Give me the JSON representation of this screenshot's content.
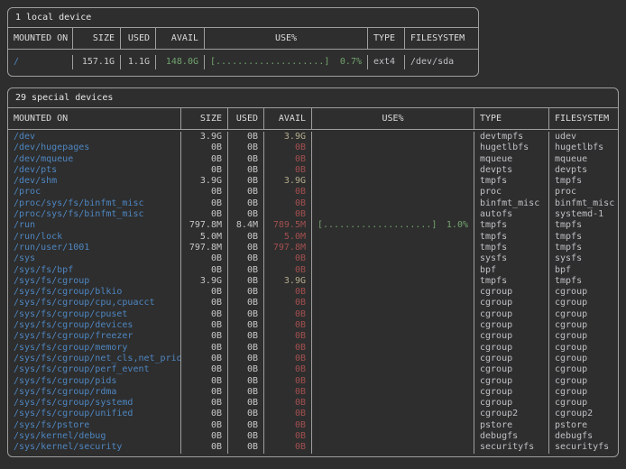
{
  "colors": {
    "background": "#2e2e2e",
    "border": "#9e9e9e",
    "title_text": "#e6e6e6",
    "header_text": "#dcdcdc",
    "mount_path_blue": "#4e86c1",
    "value_default": "#c8c8c8",
    "avail_low_red": "#a34f4f",
    "avail_mid_yellow": "#b3ab8c",
    "usage_green": "#72a36e",
    "type_text": "#c0c0c6"
  },
  "tables": [
    {
      "title": "1 local device",
      "columns": [
        "MOUNTED ON",
        "SIZE",
        "USED",
        "AVAIL",
        "USE%",
        "TYPE",
        "FILESYSTEM"
      ],
      "rows": [
        {
          "mounted_on": "/",
          "size": "157.1G",
          "used": "1.1G",
          "avail": "148.0G",
          "avail_color": "green",
          "use_bar": "[....................]",
          "use_pct": "0.7%",
          "use_color": "green",
          "type": "ext4",
          "filesystem": "/dev/sda"
        }
      ]
    },
    {
      "title": "29 special devices",
      "columns": [
        "MOUNTED ON",
        "SIZE",
        "USED",
        "AVAIL",
        "USE%",
        "TYPE",
        "FILESYSTEM"
      ],
      "rows": [
        {
          "mounted_on": "/dev",
          "size": "3.9G",
          "used": "0B",
          "avail": "3.9G",
          "avail_color": "yellow",
          "use_bar": "",
          "use_pct": "",
          "use_color": "green",
          "type": "devtmpfs",
          "filesystem": "udev"
        },
        {
          "mounted_on": "/dev/hugepages",
          "size": "0B",
          "used": "0B",
          "avail": "0B",
          "avail_color": "red",
          "use_bar": "",
          "use_pct": "",
          "use_color": "green",
          "type": "hugetlbfs",
          "filesystem": "hugetlbfs"
        },
        {
          "mounted_on": "/dev/mqueue",
          "size": "0B",
          "used": "0B",
          "avail": "0B",
          "avail_color": "red",
          "use_bar": "",
          "use_pct": "",
          "use_color": "green",
          "type": "mqueue",
          "filesystem": "mqueue"
        },
        {
          "mounted_on": "/dev/pts",
          "size": "0B",
          "used": "0B",
          "avail": "0B",
          "avail_color": "red",
          "use_bar": "",
          "use_pct": "",
          "use_color": "green",
          "type": "devpts",
          "filesystem": "devpts"
        },
        {
          "mounted_on": "/dev/shm",
          "size": "3.9G",
          "used": "0B",
          "avail": "3.9G",
          "avail_color": "yellow",
          "use_bar": "",
          "use_pct": "",
          "use_color": "green",
          "type": "tmpfs",
          "filesystem": "tmpfs"
        },
        {
          "mounted_on": "/proc",
          "size": "0B",
          "used": "0B",
          "avail": "0B",
          "avail_color": "red",
          "use_bar": "",
          "use_pct": "",
          "use_color": "green",
          "type": "proc",
          "filesystem": "proc"
        },
        {
          "mounted_on": "/proc/sys/fs/binfmt_misc",
          "size": "0B",
          "used": "0B",
          "avail": "0B",
          "avail_color": "red",
          "use_bar": "",
          "use_pct": "",
          "use_color": "green",
          "type": "binfmt_misc",
          "filesystem": "binfmt_misc"
        },
        {
          "mounted_on": "/proc/sys/fs/binfmt_misc",
          "size": "0B",
          "used": "0B",
          "avail": "0B",
          "avail_color": "red",
          "use_bar": "",
          "use_pct": "",
          "use_color": "green",
          "type": "autofs",
          "filesystem": "systemd-1"
        },
        {
          "mounted_on": "/run",
          "size": "797.8M",
          "used": "8.4M",
          "avail": "789.5M",
          "avail_color": "red",
          "use_bar": "[....................]",
          "use_pct": "1.0%",
          "use_color": "green",
          "type": "tmpfs",
          "filesystem": "tmpfs"
        },
        {
          "mounted_on": "/run/lock",
          "size": "5.0M",
          "used": "0B",
          "avail": "5.0M",
          "avail_color": "red",
          "use_bar": "",
          "use_pct": "",
          "use_color": "green",
          "type": "tmpfs",
          "filesystem": "tmpfs"
        },
        {
          "mounted_on": "/run/user/1001",
          "size": "797.8M",
          "used": "0B",
          "avail": "797.8M",
          "avail_color": "red",
          "use_bar": "",
          "use_pct": "",
          "use_color": "green",
          "type": "tmpfs",
          "filesystem": "tmpfs"
        },
        {
          "mounted_on": "/sys",
          "size": "0B",
          "used": "0B",
          "avail": "0B",
          "avail_color": "red",
          "use_bar": "",
          "use_pct": "",
          "use_color": "green",
          "type": "sysfs",
          "filesystem": "sysfs"
        },
        {
          "mounted_on": "/sys/fs/bpf",
          "size": "0B",
          "used": "0B",
          "avail": "0B",
          "avail_color": "red",
          "use_bar": "",
          "use_pct": "",
          "use_color": "green",
          "type": "bpf",
          "filesystem": "bpf"
        },
        {
          "mounted_on": "/sys/fs/cgroup",
          "size": "3.9G",
          "used": "0B",
          "avail": "3.9G",
          "avail_color": "yellow",
          "use_bar": "",
          "use_pct": "",
          "use_color": "green",
          "type": "tmpfs",
          "filesystem": "tmpfs"
        },
        {
          "mounted_on": "/sys/fs/cgroup/blkio",
          "size": "0B",
          "used": "0B",
          "avail": "0B",
          "avail_color": "red",
          "use_bar": "",
          "use_pct": "",
          "use_color": "green",
          "type": "cgroup",
          "filesystem": "cgroup"
        },
        {
          "mounted_on": "/sys/fs/cgroup/cpu,cpuacct",
          "size": "0B",
          "used": "0B",
          "avail": "0B",
          "avail_color": "red",
          "use_bar": "",
          "use_pct": "",
          "use_color": "green",
          "type": "cgroup",
          "filesystem": "cgroup"
        },
        {
          "mounted_on": "/sys/fs/cgroup/cpuset",
          "size": "0B",
          "used": "0B",
          "avail": "0B",
          "avail_color": "red",
          "use_bar": "",
          "use_pct": "",
          "use_color": "green",
          "type": "cgroup",
          "filesystem": "cgroup"
        },
        {
          "mounted_on": "/sys/fs/cgroup/devices",
          "size": "0B",
          "used": "0B",
          "avail": "0B",
          "avail_color": "red",
          "use_bar": "",
          "use_pct": "",
          "use_color": "green",
          "type": "cgroup",
          "filesystem": "cgroup"
        },
        {
          "mounted_on": "/sys/fs/cgroup/freezer",
          "size": "0B",
          "used": "0B",
          "avail": "0B",
          "avail_color": "red",
          "use_bar": "",
          "use_pct": "",
          "use_color": "green",
          "type": "cgroup",
          "filesystem": "cgroup"
        },
        {
          "mounted_on": "/sys/fs/cgroup/memory",
          "size": "0B",
          "used": "0B",
          "avail": "0B",
          "avail_color": "red",
          "use_bar": "",
          "use_pct": "",
          "use_color": "green",
          "type": "cgroup",
          "filesystem": "cgroup"
        },
        {
          "mounted_on": "/sys/fs/cgroup/net_cls,net_prio",
          "size": "0B",
          "used": "0B",
          "avail": "0B",
          "avail_color": "red",
          "use_bar": "",
          "use_pct": "",
          "use_color": "green",
          "type": "cgroup",
          "filesystem": "cgroup"
        },
        {
          "mounted_on": "/sys/fs/cgroup/perf_event",
          "size": "0B",
          "used": "0B",
          "avail": "0B",
          "avail_color": "red",
          "use_bar": "",
          "use_pct": "",
          "use_color": "green",
          "type": "cgroup",
          "filesystem": "cgroup"
        },
        {
          "mounted_on": "/sys/fs/cgroup/pids",
          "size": "0B",
          "used": "0B",
          "avail": "0B",
          "avail_color": "red",
          "use_bar": "",
          "use_pct": "",
          "use_color": "green",
          "type": "cgroup",
          "filesystem": "cgroup"
        },
        {
          "mounted_on": "/sys/fs/cgroup/rdma",
          "size": "0B",
          "used": "0B",
          "avail": "0B",
          "avail_color": "red",
          "use_bar": "",
          "use_pct": "",
          "use_color": "green",
          "type": "cgroup",
          "filesystem": "cgroup"
        },
        {
          "mounted_on": "/sys/fs/cgroup/systemd",
          "size": "0B",
          "used": "0B",
          "avail": "0B",
          "avail_color": "red",
          "use_bar": "",
          "use_pct": "",
          "use_color": "green",
          "type": "cgroup",
          "filesystem": "cgroup"
        },
        {
          "mounted_on": "/sys/fs/cgroup/unified",
          "size": "0B",
          "used": "0B",
          "avail": "0B",
          "avail_color": "red",
          "use_bar": "",
          "use_pct": "",
          "use_color": "green",
          "type": "cgroup2",
          "filesystem": "cgroup2"
        },
        {
          "mounted_on": "/sys/fs/pstore",
          "size": "0B",
          "used": "0B",
          "avail": "0B",
          "avail_color": "red",
          "use_bar": "",
          "use_pct": "",
          "use_color": "green",
          "type": "pstore",
          "filesystem": "pstore"
        },
        {
          "mounted_on": "/sys/kernel/debug",
          "size": "0B",
          "used": "0B",
          "avail": "0B",
          "avail_color": "red",
          "use_bar": "",
          "use_pct": "",
          "use_color": "green",
          "type": "debugfs",
          "filesystem": "debugfs"
        },
        {
          "mounted_on": "/sys/kernel/security",
          "size": "0B",
          "used": "0B",
          "avail": "0B",
          "avail_color": "red",
          "use_bar": "",
          "use_pct": "",
          "use_color": "green",
          "type": "securityfs",
          "filesystem": "securityfs"
        }
      ]
    }
  ]
}
